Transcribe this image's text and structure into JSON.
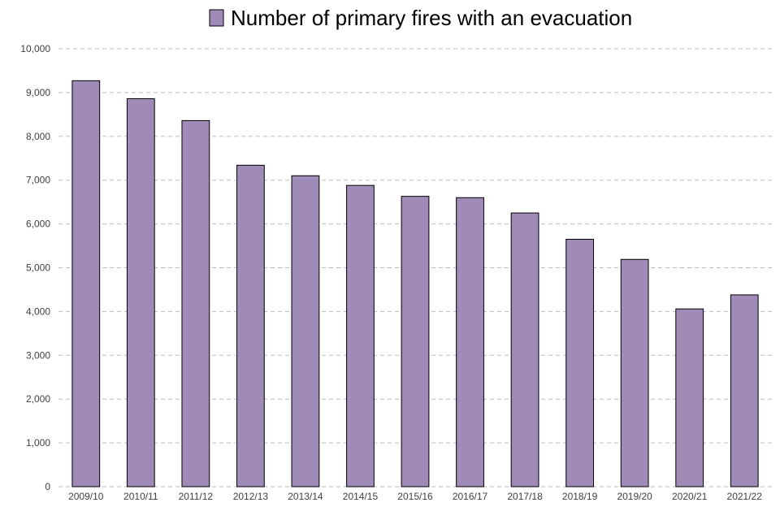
{
  "chart_data": {
    "type": "bar",
    "legend": {
      "label": "Number of primary fires with an evacuation",
      "position": "top-center"
    },
    "categories": [
      "2009/10",
      "2010/11",
      "2011/12",
      "2012/13",
      "2013/14",
      "2014/15",
      "2015/16",
      "2016/17",
      "2017/18",
      "2018/19",
      "2019/20",
      "2020/21",
      "2021/22"
    ],
    "series": [
      {
        "name": "Number of primary fires with an evacuation",
        "values": [
          9270,
          8860,
          8360,
          7340,
          7100,
          6880,
          6630,
          6600,
          6250,
          5650,
          5190,
          4060,
          4380
        ]
      }
    ],
    "yticks": [
      "0",
      "1,000",
      "2,000",
      "3,000",
      "4,000",
      "5,000",
      "6,000",
      "7,000",
      "8,000",
      "9,000",
      "10,000"
    ],
    "ylim": [
      0,
      10000
    ],
    "grid": "horizontal-dashed",
    "colors": {
      "bar": "#9f8ab8",
      "bar_border": "#000000",
      "grid": "#bdbdbd",
      "text": "#404040"
    }
  }
}
